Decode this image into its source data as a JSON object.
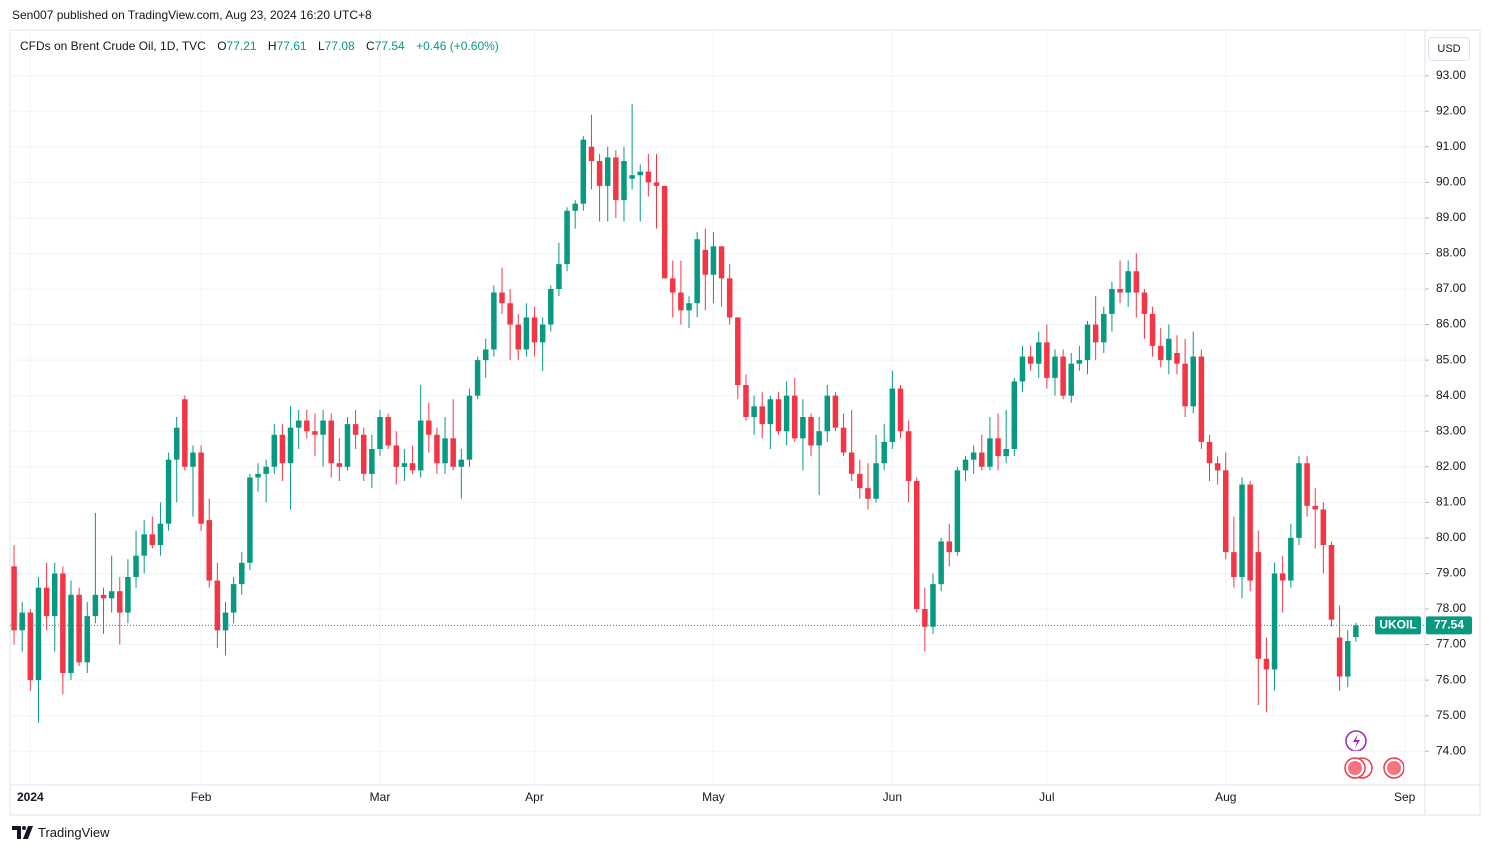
{
  "header": {
    "published": "Sen007 published on TradingView.com, Aug 23, 2024 16:20 UTC+8"
  },
  "footer": {
    "brand": "TradingView"
  },
  "chart_data": {
    "type": "candlestick",
    "title": "CFDs on Brent Crude Oil, 1D, TVC",
    "ohlc_labels": [
      "O",
      "H",
      "L",
      "C"
    ],
    "change": "+0.46 (+0.60%)",
    "symbol": "UKOIL",
    "currency": "USD",
    "up_color": "#089981",
    "down_color": "#f23645",
    "grid": true,
    "ylim": [
      73.05,
      94.2
    ],
    "yticks": [
      {
        "value": 74,
        "label": "74.00"
      },
      {
        "value": 75,
        "label": "75.00"
      },
      {
        "value": 76,
        "label": "76.00"
      },
      {
        "value": 77,
        "label": "77.00"
      },
      {
        "value": 78,
        "label": "78.00"
      },
      {
        "value": 79,
        "label": "79.00"
      },
      {
        "value": 80,
        "label": "80.00"
      },
      {
        "value": 81,
        "label": "81.00"
      },
      {
        "value": 82,
        "label": "82.00"
      },
      {
        "value": 83,
        "label": "83.00"
      },
      {
        "value": 84,
        "label": "84.00"
      },
      {
        "value": 85,
        "label": "85.00"
      },
      {
        "value": 86,
        "label": "86.00"
      },
      {
        "value": 87,
        "label": "87.00"
      },
      {
        "value": 88,
        "label": "88.00"
      },
      {
        "value": 89,
        "label": "89.00"
      },
      {
        "value": 90,
        "label": "90.00"
      },
      {
        "value": 91,
        "label": "91.00"
      },
      {
        "value": 92,
        "label": "92.00"
      },
      {
        "value": 93,
        "label": "93.00"
      }
    ],
    "xlim": [
      -0.5,
      173.5
    ],
    "xticks": [
      {
        "value": 2,
        "label": "2024"
      },
      {
        "value": 23,
        "label": "Feb"
      },
      {
        "value": 45,
        "label": "Mar"
      },
      {
        "value": 64,
        "label": "Apr"
      },
      {
        "value": 86,
        "label": "May"
      },
      {
        "value": 108,
        "label": "Jun"
      },
      {
        "value": 127,
        "label": "Jul"
      },
      {
        "value": 149,
        "label": "Aug"
      },
      {
        "value": 171,
        "label": "Sep"
      }
    ],
    "open": [
      79.2,
      77.4,
      77.9,
      76.0,
      78.6,
      77.8,
      79.0,
      76.2,
      78.4,
      76.5,
      77.8,
      78.4,
      78.3,
      78.5,
      77.9,
      78.9,
      79.5,
      80.1,
      79.8,
      80.4,
      82.2,
      83.9,
      82.0,
      82.4,
      80.5,
      78.8,
      77.4,
      77.9,
      78.7,
      79.3,
      81.7,
      81.8,
      82.0,
      82.9,
      82.1,
      83.1,
      83.3,
      83.0,
      82.9,
      83.3,
      82.1,
      82.0,
      83.2,
      82.9,
      81.8,
      82.5,
      83.4,
      82.6,
      82.0,
      82.1,
      81.9,
      83.3,
      82.9,
      82.1,
      82.8,
      82.0,
      82.2,
      84.0,
      85.0,
      85.3,
      86.9,
      86.6,
      86.0,
      85.3,
      86.2,
      85.5,
      86.0,
      87.0,
      87.7,
      89.2,
      89.4,
      91.0,
      90.6,
      89.9,
      90.7,
      89.5,
      90.1,
      90.2,
      90.3,
      90.0,
      89.9,
      87.3,
      86.9,
      86.4,
      86.6,
      88.1,
      87.4,
      88.2,
      87.3,
      86.2,
      84.3,
      83.4,
      83.7,
      83.2,
      83.9,
      83.0,
      84.0,
      82.8,
      83.4,
      82.6,
      83.0,
      84.0,
      83.1,
      82.4,
      81.8,
      81.4,
      81.1,
      82.1,
      82.7,
      84.2,
      83.0,
      81.6,
      78.0,
      77.5,
      78.7,
      79.9,
      79.6,
      81.9,
      82.2,
      82.4,
      82.0,
      82.8,
      82.3,
      82.5,
      84.4,
      85.1,
      84.9,
      85.5,
      84.5,
      85.1,
      84.0,
      84.9,
      85.0,
      86.0,
      85.5,
      86.3,
      87.0,
      86.9,
      87.5,
      86.9,
      86.3,
      85.4,
      85.0,
      85.2,
      84.9,
      83.7,
      85.1,
      82.7,
      82.1,
      81.9,
      79.6,
      78.9,
      81.5,
      79.6,
      76.6,
      76.3,
      79.0,
      78.8,
      80.0,
      82.1,
      80.9,
      80.8,
      79.8,
      77.2,
      76.1,
      77.21
    ],
    "high": [
      79.8,
      78.2,
      78.0,
      78.9,
      79.3,
      79.3,
      79.2,
      78.8,
      78.6,
      78.2,
      80.7,
      78.6,
      79.5,
      78.9,
      79.4,
      80.2,
      80.5,
      80.6,
      81.0,
      82.4,
      83.4,
      84.0,
      82.6,
      82.6,
      81.1,
      79.3,
      78.2,
      78.9,
      79.6,
      81.8,
      82.1,
      82.2,
      83.2,
      83.2,
      83.7,
      83.6,
      83.6,
      83.5,
      83.6,
      83.5,
      82.8,
      83.4,
      83.6,
      83.1,
      82.9,
      83.6,
      83.5,
      83.0,
      82.5,
      82.6,
      84.3,
      83.8,
      83.1,
      83.4,
      83.9,
      82.5,
      84.2,
      85.1,
      85.6,
      87.1,
      87.6,
      87.0,
      86.3,
      86.6,
      86.5,
      86.2,
      87.1,
      88.3,
      89.3,
      89.5,
      91.3,
      91.9,
      90.8,
      91.0,
      90.9,
      91.0,
      92.2,
      90.5,
      90.8,
      90.8,
      89.9,
      87.8,
      87.8,
      86.8,
      88.6,
      88.7,
      88.6,
      88.2,
      87.7,
      86.2,
      84.6,
      84.0,
      84.1,
      84.0,
      84.1,
      84.4,
      84.5,
      83.9,
      83.5,
      83.4,
      84.3,
      84.1,
      83.5,
      83.6,
      82.2,
      82.1,
      82.9,
      83.2,
      84.7,
      84.3,
      83.3,
      81.7,
      78.6,
      79.0,
      80.0,
      80.4,
      82.0,
      82.3,
      82.6,
      82.9,
      83.4,
      83.5,
      83.6,
      84.5,
      85.4,
      85.4,
      85.8,
      86.0,
      85.3,
      85.3,
      85.2,
      85.4,
      86.1,
      86.8,
      86.5,
      87.2,
      87.8,
      87.8,
      88.0,
      87.0,
      86.5,
      85.9,
      86.0,
      85.7,
      85.6,
      85.8,
      85.3,
      82.9,
      82.3,
      82.4,
      80.6,
      81.7,
      81.6,
      80.2,
      77.2,
      79.3,
      79.5,
      80.4,
      82.3,
      82.3,
      81.4,
      81.0,
      79.9,
      78.1,
      77.4,
      77.61
    ],
    "low": [
      77.0,
      76.8,
      75.7,
      74.8,
      77.4,
      76.8,
      75.6,
      76.0,
      76.4,
      76.2,
      77.6,
      77.3,
      77.9,
      77.0,
      77.6,
      78.6,
      79.0,
      79.7,
      79.5,
      80.2,
      81.0,
      81.9,
      80.6,
      80.2,
      78.6,
      76.9,
      76.7,
      77.6,
      78.4,
      79.1,
      81.3,
      81.0,
      81.8,
      81.6,
      80.8,
      82.5,
      82.8,
      82.3,
      82.0,
      81.7,
      81.6,
      81.9,
      82.5,
      81.6,
      81.4,
      82.3,
      82.5,
      81.5,
      81.6,
      81.8,
      81.7,
      82.4,
      81.8,
      81.8,
      81.9,
      81.1,
      82.0,
      83.9,
      84.5,
      85.1,
      86.3,
      85.0,
      85.0,
      85.1,
      85.1,
      84.7,
      85.8,
      86.8,
      87.5,
      88.7,
      89.2,
      89.8,
      88.9,
      88.9,
      89.0,
      88.9,
      89.8,
      88.9,
      89.6,
      88.7,
      87.3,
      86.2,
      86.0,
      85.9,
      86.2,
      86.4,
      86.6,
      86.5,
      86.0,
      83.9,
      83.3,
      82.9,
      82.8,
      82.5,
      82.9,
      82.6,
      82.7,
      81.9,
      82.3,
      81.2,
      82.7,
      83.0,
      82.3,
      81.6,
      81.1,
      80.8,
      81.0,
      81.9,
      82.5,
      82.8,
      81.0,
      77.9,
      76.8,
      77.3,
      78.5,
      79.2,
      79.5,
      81.6,
      81.8,
      81.9,
      81.9,
      81.9,
      82.1,
      82.3,
      84.1,
      84.7,
      84.5,
      84.2,
      84.0,
      83.9,
      83.8,
      84.7,
      84.6,
      85.0,
      85.2,
      85.8,
      86.6,
      86.5,
      86.2,
      85.6,
      85.1,
      84.8,
      84.6,
      84.6,
      83.4,
      83.5,
      82.5,
      81.6,
      81.5,
      79.4,
      78.6,
      78.3,
      78.5,
      75.3,
      75.1,
      75.7,
      77.9,
      78.6,
      79.8,
      80.6,
      79.7,
      79.0,
      77.5,
      75.7,
      75.8,
      77.08
    ],
    "close": [
      77.4,
      77.9,
      76.0,
      78.6,
      77.8,
      79.0,
      76.2,
      78.4,
      76.5,
      77.8,
      78.4,
      78.3,
      78.5,
      77.9,
      78.9,
      79.5,
      80.1,
      79.8,
      80.4,
      82.2,
      83.1,
      82.0,
      82.4,
      80.4,
      78.8,
      77.4,
      77.9,
      78.7,
      79.3,
      81.7,
      81.8,
      82.0,
      82.9,
      82.1,
      83.1,
      83.3,
      83.0,
      82.9,
      83.3,
      82.1,
      82.0,
      83.2,
      82.9,
      81.8,
      82.5,
      83.4,
      82.6,
      82.0,
      82.1,
      81.9,
      83.3,
      82.9,
      82.1,
      82.8,
      82.0,
      82.2,
      84.0,
      85.0,
      85.3,
      86.9,
      86.6,
      86.0,
      85.3,
      86.2,
      85.5,
      86.0,
      87.0,
      87.7,
      89.2,
      89.4,
      91.2,
      90.6,
      89.9,
      90.7,
      89.5,
      90.6,
      90.2,
      90.3,
      90.0,
      89.9,
      87.3,
      86.9,
      86.4,
      86.6,
      88.4,
      87.4,
      88.2,
      87.3,
      86.2,
      84.3,
      83.4,
      83.7,
      83.2,
      83.9,
      83.0,
      84.0,
      82.8,
      83.4,
      82.6,
      83.0,
      84.0,
      83.1,
      82.4,
      81.8,
      81.4,
      81.1,
      82.1,
      82.7,
      84.2,
      83.0,
      81.6,
      78.0,
      77.5,
      78.7,
      79.9,
      79.6,
      81.9,
      82.2,
      82.4,
      82.0,
      82.8,
      82.3,
      82.5,
      84.4,
      85.1,
      84.9,
      85.5,
      84.5,
      85.1,
      84.0,
      84.9,
      85.0,
      86.0,
      85.5,
      86.3,
      87.0,
      86.9,
      87.5,
      86.9,
      86.3,
      85.4,
      85.0,
      85.6,
      84.9,
      83.7,
      85.1,
      82.7,
      82.1,
      81.9,
      79.6,
      78.9,
      81.5,
      78.8,
      76.6,
      76.3,
      79.0,
      78.8,
      80.0,
      82.1,
      80.9,
      80.8,
      79.8,
      77.7,
      76.1,
      77.1,
      77.54
    ]
  }
}
